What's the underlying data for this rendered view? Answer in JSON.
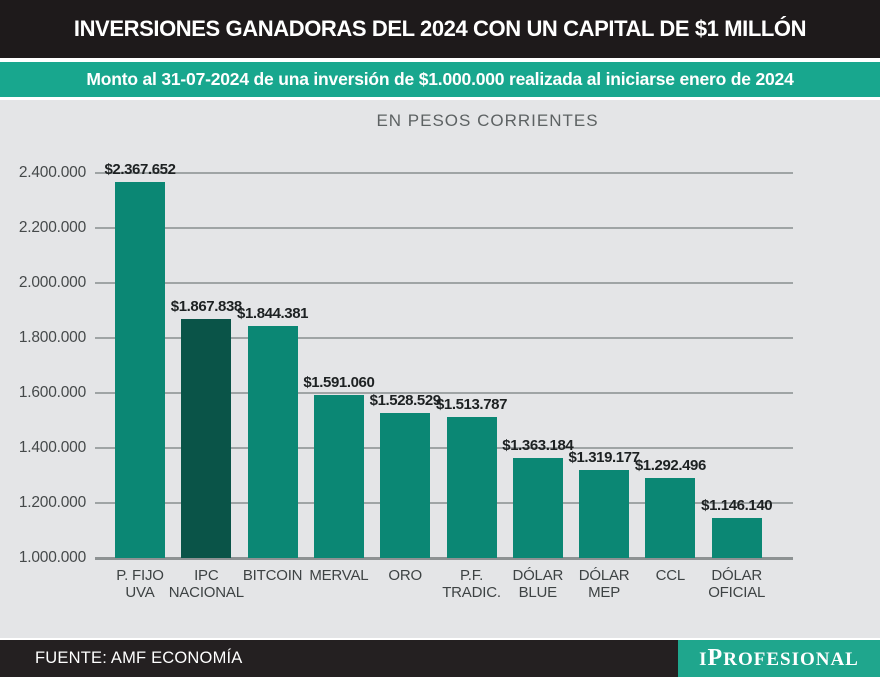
{
  "header": {
    "title": "INVERSIONES GANADORAS DEL 2024 CON UN CAPITAL DE $1 MILLÓN"
  },
  "banner": {
    "text": "Monto al 31-07-2024 de una inversión de $1.000.000 realizada al iniciarse enero de 2024"
  },
  "chart_data": {
    "type": "bar",
    "title": "EN PESOS CORRIENTES",
    "categories": [
      [
        "P. FIJO",
        "UVA"
      ],
      [
        "IPC",
        "NACIONAL"
      ],
      [
        "BITCOIN"
      ],
      [
        "MERVAL"
      ],
      [
        "ORO"
      ],
      [
        "P.F.",
        "TRADIC."
      ],
      [
        "DÓLAR",
        "BLUE"
      ],
      [
        "DÓLAR",
        "MEP"
      ],
      [
        "CCL"
      ],
      [
        "DÓLAR",
        "OFICIAL"
      ]
    ],
    "values": [
      2367652,
      1867838,
      1844381,
      1591060,
      1528529,
      1513787,
      1363184,
      1319177,
      1292496,
      1146140
    ],
    "value_labels": [
      "$2.367.652",
      "$1.867.838",
      "$1.844.381",
      "$1.591.060",
      "$1.528.529",
      "$1.513.787",
      "$1.363.184",
      "$1.319.177",
      "$1.292.496",
      "$1.146.140"
    ],
    "y_ticks": [
      "2.400.000",
      "2.200.000",
      "2.000.000",
      "1.800.000",
      "1.600.000",
      "1.400.000",
      "1.200.000",
      "1.000.000"
    ],
    "ylim": [
      1000000,
      2400000
    ],
    "grid": true,
    "legend": "none",
    "bar_color": "#0b8774",
    "highlight_index": 1,
    "highlight_color": "#0a5448"
  },
  "footer": {
    "source": "FUENTE: AMF ECONOMÍA",
    "logo": {
      "part1": "I",
      "part2": "P",
      "part3": "ROFESIONAL"
    }
  },
  "theme": {
    "accent_teal": "#18a78e",
    "header_black": "#1e1a1b",
    "chart_bg": "#e4e5e7",
    "gridline_gray": "#9fa4a5"
  }
}
